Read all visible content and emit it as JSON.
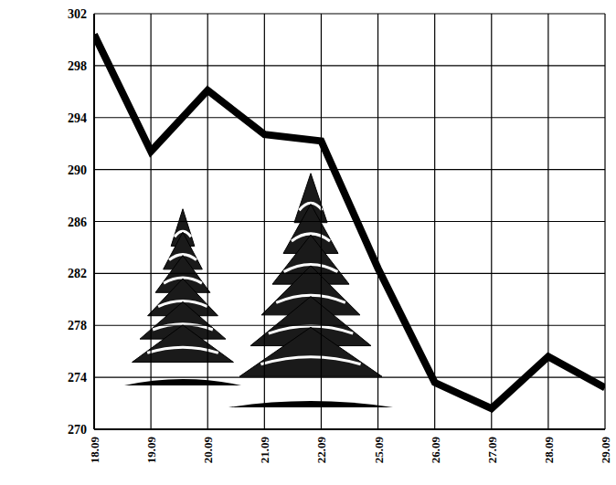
{
  "chart_data": {
    "type": "line",
    "categories": [
      "18.09",
      "19.09",
      "20.09",
      "21.09",
      "22.09",
      "25.09",
      "26.09",
      "27.09",
      "28.09",
      "29.09"
    ],
    "values": [
      300.4,
      291.4,
      296.1,
      292.7,
      292.2,
      282.4,
      273.6,
      271.6,
      275.6,
      273.2
    ],
    "color": "#000000",
    "ylim": [
      270,
      302
    ],
    "yticks": [
      270,
      274,
      278,
      282,
      286,
      290,
      294,
      298,
      302
    ],
    "grid": true
  }
}
